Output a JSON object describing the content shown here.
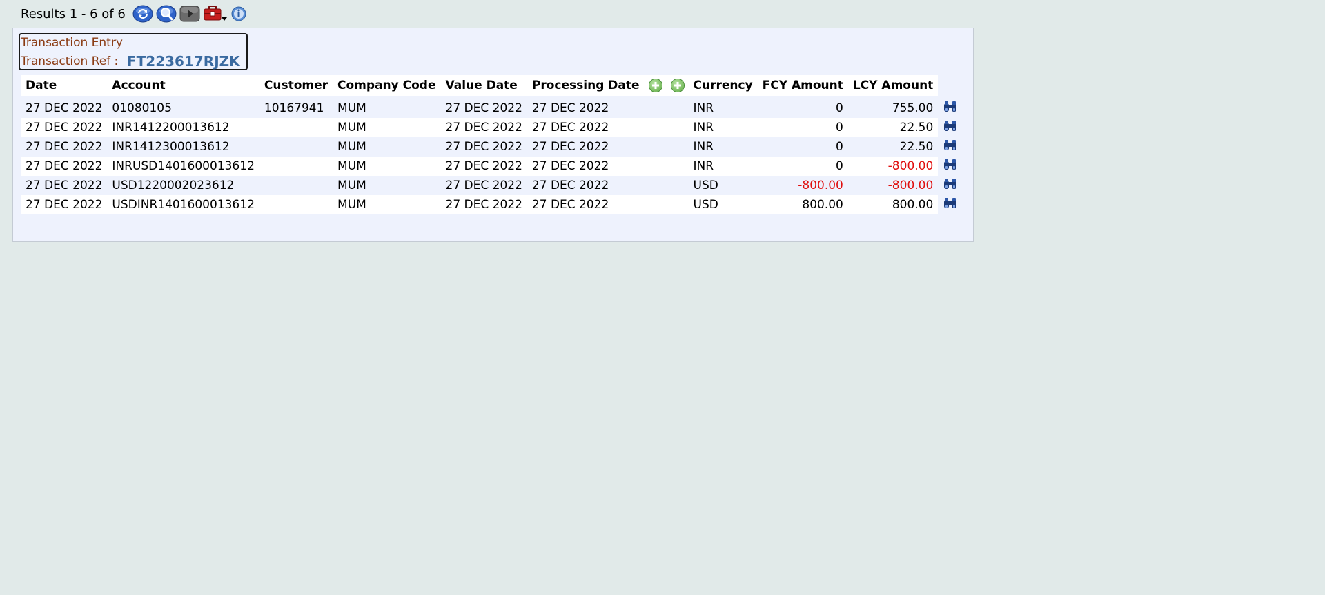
{
  "toolbar": {
    "results_text": "Results 1 - 6 of 6",
    "icons": [
      "refresh-icon",
      "search-icon",
      "next-icon",
      "toolbox-icon",
      "info-icon"
    ]
  },
  "header": {
    "entry_title": "Transaction Entry",
    "ref_label": "Transaction Ref :",
    "ref_value": "FT223617RJZK"
  },
  "table": {
    "columns": [
      "Date",
      "Account",
      "Customer",
      "Company Code",
      "Value Date",
      "Processing Date",
      "Currency",
      "FCY Amount",
      "LCY Amount"
    ],
    "rows": [
      {
        "date": "27 DEC 2022",
        "account": "01080105",
        "customer": "10167941",
        "company": "MUM",
        "value_date": "27 DEC 2022",
        "processing_date": "27 DEC 2022",
        "currency": "INR",
        "fcy": "0",
        "lcy": "755.00",
        "fcy_neg": false,
        "lcy_neg": false
      },
      {
        "date": "27 DEC 2022",
        "account": "INR1412200013612",
        "customer": "",
        "company": "MUM",
        "value_date": "27 DEC 2022",
        "processing_date": "27 DEC 2022",
        "currency": "INR",
        "fcy": "0",
        "lcy": "22.50",
        "fcy_neg": false,
        "lcy_neg": false
      },
      {
        "date": "27 DEC 2022",
        "account": "INR1412300013612",
        "customer": "",
        "company": "MUM",
        "value_date": "27 DEC 2022",
        "processing_date": "27 DEC 2022",
        "currency": "INR",
        "fcy": "0",
        "lcy": "22.50",
        "fcy_neg": false,
        "lcy_neg": false
      },
      {
        "date": "27 DEC 2022",
        "account": "INRUSD1401600013612",
        "customer": "",
        "company": "MUM",
        "value_date": "27 DEC 2022",
        "processing_date": "27 DEC 2022",
        "currency": "INR",
        "fcy": "0",
        "lcy": "-800.00",
        "fcy_neg": false,
        "lcy_neg": true
      },
      {
        "date": "27 DEC 2022",
        "account": "USD1220002023612",
        "customer": "",
        "company": "MUM",
        "value_date": "27 DEC 2022",
        "processing_date": "27 DEC 2022",
        "currency": "USD",
        "fcy": "-800.00",
        "lcy": "-800.00",
        "fcy_neg": true,
        "lcy_neg": true
      },
      {
        "date": "27 DEC 2022",
        "account": "USDINR1401600013612",
        "customer": "",
        "company": "MUM",
        "value_date": "27 DEC 2022",
        "processing_date": "27 DEC 2022",
        "currency": "USD",
        "fcy": "800.00",
        "lcy": "800.00",
        "fcy_neg": false,
        "lcy_neg": false
      }
    ]
  },
  "colors": {
    "background": "#e1eae9",
    "panel": "#eef2fd",
    "header_label": "#8a3a12",
    "ref_value": "#3a6aa0",
    "negative": "#e0100f"
  }
}
